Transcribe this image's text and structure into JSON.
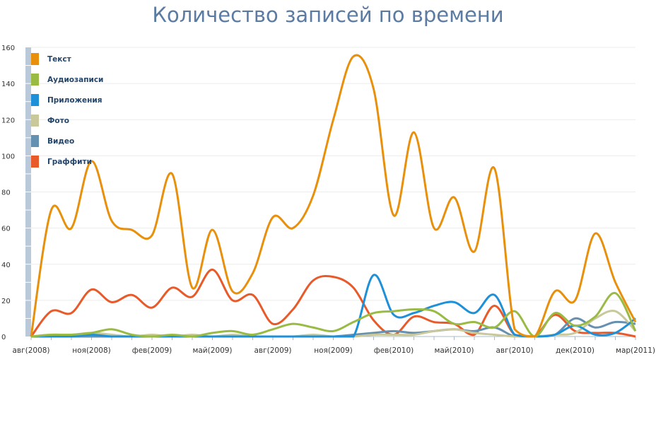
{
  "chart_data": {
    "type": "line",
    "title": "Количество записей по времени",
    "xlabel": "",
    "ylabel": "",
    "ylim": [
      0,
      160
    ],
    "yticks": [
      0,
      20,
      40,
      60,
      80,
      100,
      120,
      140,
      160
    ],
    "grid": true,
    "legend": "top-left",
    "categories": [
      "авг(2008)",
      "",
      "",
      "ноя(2008)",
      "",
      "",
      "фев(2009)",
      "",
      "",
      "май(2009)",
      "",
      "",
      "авг(2009)",
      "",
      "",
      "ноя(2009)",
      "",
      "",
      "фев(2010)",
      "",
      "",
      "май(2010)",
      "",
      "",
      "авг(2010)",
      "",
      "",
      "дек(2010)",
      "",
      "",
      "мар(2011)"
    ],
    "series": [
      {
        "name": "Текст",
        "color": "#e8900c",
        "values": [
          0,
          70,
          60,
          97,
          64,
          59,
          56,
          90,
          27,
          59,
          25,
          35,
          66,
          60,
          78,
          120,
          155,
          137,
          67,
          113,
          60,
          77,
          47,
          93,
          4,
          0,
          25,
          20,
          57,
          30,
          8
        ]
      },
      {
        "name": "Аудиозаписи",
        "color": "#99bb44",
        "values": [
          0,
          1,
          1,
          2,
          4,
          1,
          0,
          1,
          0,
          2,
          3,
          1,
          4,
          7,
          5,
          3,
          8,
          13,
          14,
          15,
          14,
          7,
          8,
          5,
          14,
          0,
          13,
          6,
          11,
          24,
          3
        ]
      },
      {
        "name": "Приложения",
        "color": "#1e90d8",
        "values": [
          0,
          0,
          0,
          1,
          0,
          0,
          0,
          0,
          0,
          0,
          0,
          0,
          0,
          0,
          0,
          0,
          0,
          34,
          12,
          13,
          17,
          19,
          13,
          23,
          1,
          0,
          1,
          6,
          1,
          2,
          10
        ]
      },
      {
        "name": "Фото",
        "color": "#c8c89a",
        "values": [
          0,
          1,
          1,
          2,
          1,
          0,
          1,
          0,
          1,
          0,
          1,
          0,
          0,
          0,
          1,
          0,
          0,
          1,
          1,
          1,
          3,
          4,
          2,
          1,
          0,
          0,
          1,
          2,
          10,
          14,
          3
        ]
      },
      {
        "name": "Видео",
        "color": "#6690b0",
        "values": [
          0,
          0,
          0,
          0,
          0,
          0,
          0,
          0,
          0,
          0,
          0,
          0,
          0,
          0,
          0,
          0,
          1,
          2,
          3,
          2,
          3,
          4,
          3,
          5,
          0,
          0,
          1,
          10,
          5,
          8,
          7
        ]
      },
      {
        "name": "Граффити",
        "color": "#e85a2a",
        "values": [
          0,
          14,
          13,
          26,
          19,
          23,
          16,
          27,
          22,
          37,
          20,
          23,
          7,
          15,
          31,
          33,
          27,
          9,
          1,
          11,
          8,
          7,
          1,
          17,
          1,
          0,
          12,
          3,
          2,
          2,
          0
        ]
      }
    ]
  }
}
